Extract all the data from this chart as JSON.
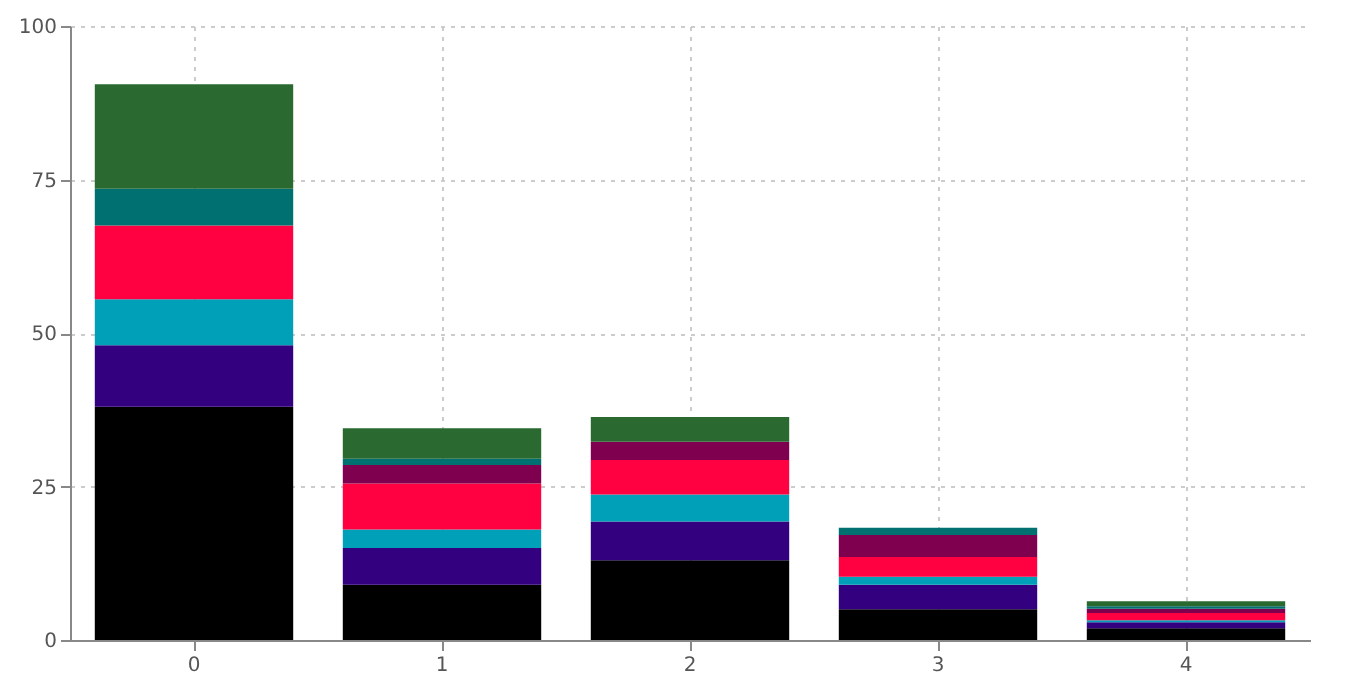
{
  "chart_data": {
    "type": "bar",
    "stacked": true,
    "categories": [
      "0",
      "1",
      "2",
      "3",
      "4"
    ],
    "series": [
      {
        "color": "#000000",
        "values": [
          38,
          9,
          13,
          5,
          1.9
        ]
      },
      {
        "color": "#330080",
        "values": [
          10,
          6,
          6.3,
          4,
          1
        ]
      },
      {
        "color": "#00a0b8",
        "values": [
          7.5,
          3,
          4.4,
          1.3,
          0.3
        ]
      },
      {
        "color": "#ff0040",
        "values": [
          12,
          7.5,
          5.6,
          3.2,
          1.2
        ]
      },
      {
        "color": "#800050",
        "values": [
          0,
          3,
          3,
          3.6,
          0.7
        ]
      },
      {
        "color": "#007070",
        "values": [
          6,
          1,
          0,
          1.2,
          0.4
        ]
      },
      {
        "color": "#2a6a30",
        "values": [
          17,
          5,
          4,
          0,
          0.8
        ]
      }
    ],
    "ylim": [
      0,
      100
    ],
    "yticks": [
      0,
      25,
      50,
      75,
      100
    ],
    "grid": true,
    "legend": false
  }
}
